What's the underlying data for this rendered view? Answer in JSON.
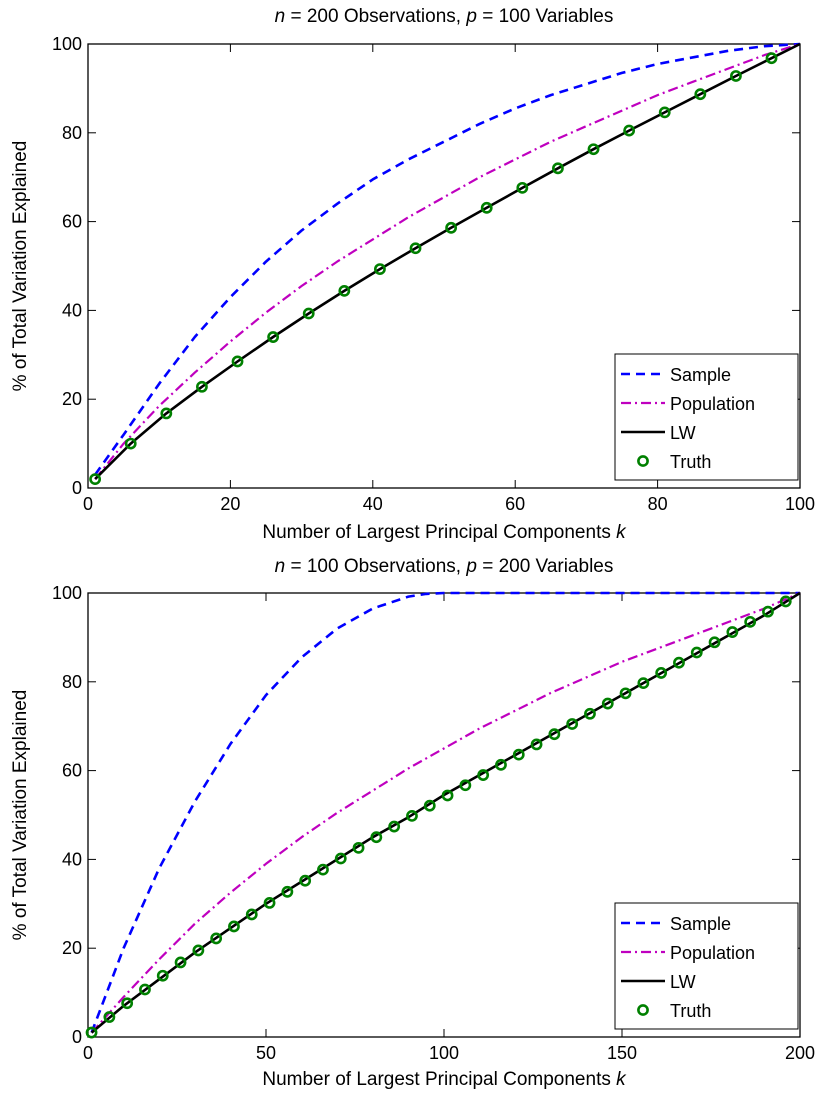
{
  "colors": {
    "sample": "#0000ff",
    "population": "#bf00bf",
    "lw": "#000000",
    "truth": "#008000"
  },
  "chart_data": [
    {
      "type": "line",
      "title_parts": [
        "n",
        " = 200 Observations,  ",
        "p",
        " = 100 Variables"
      ],
      "xlabel": "Number of Largest Principal Components ",
      "xlabel_var": "k",
      "ylabel": "% of Total Variation Explained",
      "xlim": [
        0,
        100
      ],
      "ylim": [
        0,
        100
      ],
      "xticks": [
        0,
        20,
        40,
        60,
        80,
        100
      ],
      "yticks": [
        0,
        20,
        40,
        60,
        80,
        100
      ],
      "grid": false,
      "legend_position": "bottom-right",
      "series": [
        {
          "name": "Sample",
          "style": "dashed",
          "x": [
            1,
            5,
            10,
            15,
            20,
            25,
            30,
            35,
            40,
            45,
            50,
            55,
            60,
            65,
            70,
            75,
            80,
            85,
            90,
            95,
            100
          ],
          "y": [
            3,
            12,
            23.5,
            34,
            43,
            51,
            58,
            64,
            69.5,
            74,
            78,
            82,
            85.5,
            88.5,
            91,
            93.5,
            95.5,
            97,
            98.5,
            99.5,
            100
          ]
        },
        {
          "name": "Population",
          "style": "dashdot",
          "x": [
            1,
            5,
            10,
            15,
            20,
            25,
            30,
            35,
            40,
            45,
            50,
            55,
            60,
            65,
            70,
            75,
            80,
            85,
            90,
            95,
            100
          ],
          "y": [
            2,
            10,
            18.5,
            26,
            33,
            39.5,
            45.5,
            51,
            56,
            61,
            65.5,
            70,
            74,
            78,
            81.5,
            85,
            88.5,
            91.5,
            94.5,
            97.5,
            100
          ]
        },
        {
          "name": "LW",
          "style": "solid",
          "x": [
            1,
            6,
            11,
            16,
            21,
            26,
            31,
            36,
            41,
            46,
            51,
            56,
            61,
            66,
            71,
            76,
            81,
            86,
            91,
            96,
            100
          ],
          "y": [
            2,
            10,
            16.8,
            22.8,
            28.5,
            34,
            39.3,
            44.4,
            49.3,
            54,
            58.6,
            63.1,
            67.6,
            72,
            76.3,
            80.5,
            84.6,
            88.7,
            92.8,
            96.8,
            100
          ]
        },
        {
          "name": "Truth",
          "style": "circle",
          "x": [
            1,
            6,
            11,
            16,
            21,
            26,
            31,
            36,
            41,
            46,
            51,
            56,
            61,
            66,
            71,
            76,
            81,
            86,
            91,
            96
          ],
          "y": [
            2,
            10,
            16.8,
            22.8,
            28.5,
            34,
            39.3,
            44.4,
            49.3,
            54,
            58.6,
            63.1,
            67.6,
            72,
            76.3,
            80.5,
            84.6,
            88.7,
            92.8,
            96.8
          ]
        }
      ]
    },
    {
      "type": "line",
      "title_parts": [
        "n",
        " = 100 Observations,  ",
        "p",
        " = 200 Variables"
      ],
      "xlabel": "Number of Largest Principal Components ",
      "xlabel_var": "k",
      "ylabel": "% of Total Variation Explained",
      "xlim": [
        0,
        200
      ],
      "ylim": [
        0,
        100
      ],
      "xticks": [
        0,
        50,
        100,
        150,
        200
      ],
      "yticks": [
        0,
        20,
        40,
        60,
        80,
        100
      ],
      "grid": false,
      "legend_position": "bottom-right",
      "series": [
        {
          "name": "Sample",
          "style": "dashed",
          "x": [
            1,
            10,
            20,
            30,
            40,
            50,
            60,
            70,
            80,
            90,
            95,
            100,
            150,
            200
          ],
          "y": [
            1,
            20,
            38,
            53,
            66,
            77,
            85.5,
            92,
            96.5,
            99.2,
            99.8,
            100,
            100,
            100
          ]
        },
        {
          "name": "Population",
          "style": "dashdot",
          "x": [
            1,
            10,
            20,
            30,
            40,
            50,
            60,
            70,
            80,
            90,
            100,
            110,
            120,
            130,
            140,
            150,
            160,
            170,
            180,
            190,
            200
          ],
          "y": [
            1,
            9,
            17.5,
            25.5,
            32.5,
            39,
            45,
            50.5,
            55.5,
            60.5,
            65,
            69.5,
            73.5,
            77.5,
            81,
            84.5,
            87.5,
            90.5,
            93.5,
            96.5,
            100
          ]
        },
        {
          "name": "LW",
          "style": "solid",
          "x": [
            1,
            10,
            20,
            30,
            40,
            50,
            60,
            70,
            80,
            90,
            100,
            110,
            120,
            130,
            140,
            150,
            160,
            170,
            180,
            190,
            200
          ],
          "y": [
            1,
            7,
            13,
            19,
            24.5,
            30,
            35,
            40,
            45,
            49.5,
            54.5,
            59,
            63.5,
            68,
            72.5,
            77,
            81.5,
            86,
            90.5,
            95,
            100
          ]
        },
        {
          "name": "Truth",
          "style": "circle",
          "x": [
            1,
            6,
            11,
            16,
            21,
            26,
            31,
            36,
            41,
            46,
            51,
            56,
            61,
            66,
            71,
            76,
            81,
            86,
            91,
            96,
            101,
            106,
            111,
            116,
            121,
            126,
            131,
            136,
            141,
            146,
            151,
            156,
            161,
            166,
            171,
            176,
            181,
            186,
            191,
            196
          ],
          "y": [
            1,
            4.5,
            7.6,
            10.7,
            13.8,
            16.8,
            19.5,
            22.2,
            24.9,
            27.6,
            30.2,
            32.7,
            35.2,
            37.7,
            40.2,
            42.6,
            45,
            47.4,
            49.8,
            52.1,
            54.4,
            56.7,
            59,
            61.3,
            63.6,
            65.9,
            68.2,
            70.5,
            72.8,
            75.1,
            77.4,
            79.7,
            82,
            84.3,
            86.6,
            88.9,
            91.2,
            93.5,
            95.8,
            98.1
          ]
        }
      ]
    }
  ]
}
